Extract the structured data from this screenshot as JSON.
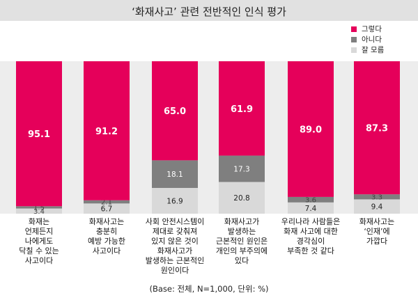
{
  "title": "‘화재사고’ 관련 전반적인 인식 평가",
  "base_note": "(Base: 전체, N=1,000, 단위: %)",
  "colors": {
    "yes": "#e5005a",
    "no": "#7f7f7f",
    "unsure": "#d9d9d9",
    "title_bg": "#e1e1e1",
    "plot_bg": "#ededed"
  },
  "legend": [
    {
      "label": "그렇다",
      "color": "#e5005a"
    },
    {
      "label": "아니다",
      "color": "#7f7f7f"
    },
    {
      "label": "잘 모름",
      "color": "#d9d9d9"
    }
  ],
  "chart_data": {
    "type": "bar",
    "stacked": true,
    "orientation": "vertical",
    "categories": [
      "화재는\n언제든지\n나에게도\n닥칠 수 있는\n사고이다",
      "화재사고는\n충분히\n예방 가능한\n사고이다",
      "사회 안전시스템이\n제대로 갖춰져\n있지 않은 것이\n화재사고가\n발생하는 근본적인\n원인이다",
      "화재사고가\n발생하는\n근본적인 원인은\n개인의 부주의에\n있다",
      "우리나라 사람들은\n화재 사고에 대한\n경각심이\n부족한 것 같다",
      "화재사고는\n‘인재’에\n가깝다"
    ],
    "series": [
      {
        "name": "그렇다",
        "values": [
          95.1,
          91.2,
          65.0,
          61.9,
          89.0,
          87.3
        ]
      },
      {
        "name": "아니다",
        "values": [
          1.5,
          2.1,
          18.1,
          17.3,
          3.6,
          3.3
        ]
      },
      {
        "name": "잘 모름",
        "values": [
          3.4,
          6.7,
          16.9,
          20.8,
          7.4,
          9.4
        ]
      }
    ],
    "ylim": [
      0,
      100
    ],
    "grid": false,
    "legend_position": "top-right"
  }
}
